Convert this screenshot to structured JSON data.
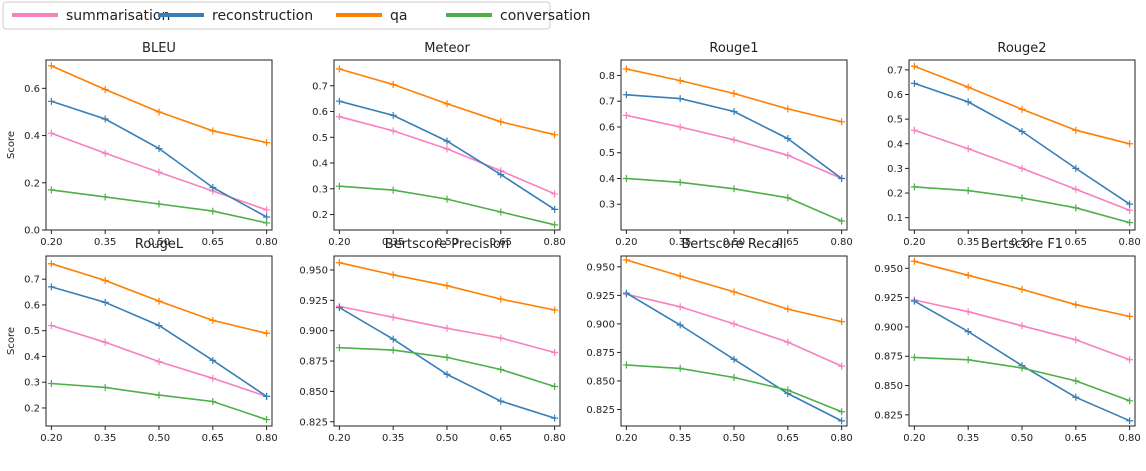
{
  "legend": {
    "placement": "top-left",
    "entries": [
      {
        "name": "summarisation",
        "color": "#f781bf"
      },
      {
        "name": "reconstruction",
        "color": "#377eb8"
      },
      {
        "name": "qa",
        "color": "#ff7f00"
      },
      {
        "name": "conversation",
        "color": "#4daf4a"
      }
    ]
  },
  "chart_data": [
    {
      "type": "line",
      "title": "BLEU",
      "ylabel": "Score",
      "x": [
        0.2,
        0.35,
        0.5,
        0.65,
        0.8
      ],
      "xticks": [
        "0.20",
        "0.35",
        "0.50",
        "0.65",
        "0.80"
      ],
      "ylim": [
        0.0,
        0.72
      ],
      "yticks": [
        0.0,
        0.2,
        0.4,
        0.6
      ],
      "yticklabels": [
        "0.0",
        "0.2",
        "0.4",
        "0.6"
      ],
      "series": [
        {
          "name": "summarisation",
          "values": [
            0.41,
            0.325,
            0.245,
            0.165,
            0.085
          ]
        },
        {
          "name": "reconstruction",
          "values": [
            0.545,
            0.47,
            0.345,
            0.18,
            0.055
          ]
        },
        {
          "name": "qa",
          "values": [
            0.695,
            0.595,
            0.5,
            0.42,
            0.37
          ]
        },
        {
          "name": "conversation",
          "values": [
            0.17,
            0.14,
            0.11,
            0.08,
            0.03
          ]
        }
      ]
    },
    {
      "type": "line",
      "title": "Meteor",
      "ylabel": "",
      "x": [
        0.2,
        0.35,
        0.5,
        0.65,
        0.8
      ],
      "xticks": [
        "0.20",
        "0.35",
        "0.50",
        "0.65",
        "0.80"
      ],
      "ylim": [
        0.14,
        0.8
      ],
      "yticks": [
        0.2,
        0.3,
        0.4,
        0.5,
        0.6,
        0.7
      ],
      "yticklabels": [
        "0.2",
        "0.3",
        "0.4",
        "0.5",
        "0.6",
        "0.7"
      ],
      "series": [
        {
          "name": "summarisation",
          "values": [
            0.58,
            0.525,
            0.455,
            0.37,
            0.28
          ]
        },
        {
          "name": "reconstruction",
          "values": [
            0.64,
            0.585,
            0.485,
            0.355,
            0.22
          ]
        },
        {
          "name": "qa",
          "values": [
            0.765,
            0.705,
            0.63,
            0.56,
            0.51
          ]
        },
        {
          "name": "conversation",
          "values": [
            0.31,
            0.295,
            0.26,
            0.21,
            0.16
          ]
        }
      ]
    },
    {
      "type": "line",
      "title": "Rouge1",
      "ylabel": "",
      "x": [
        0.2,
        0.35,
        0.5,
        0.65,
        0.8
      ],
      "xticks": [
        "0.20",
        "0.35",
        "0.50",
        "0.65",
        "0.80"
      ],
      "ylim": [
        0.2,
        0.86
      ],
      "yticks": [
        0.3,
        0.4,
        0.5,
        0.6,
        0.7,
        0.8
      ],
      "yticklabels": [
        "0.3",
        "0.4",
        "0.5",
        "0.6",
        "0.7",
        "0.8"
      ],
      "series": [
        {
          "name": "summarisation",
          "values": [
            0.645,
            0.6,
            0.55,
            0.49,
            0.4
          ]
        },
        {
          "name": "reconstruction",
          "values": [
            0.725,
            0.71,
            0.66,
            0.555,
            0.4
          ]
        },
        {
          "name": "qa",
          "values": [
            0.825,
            0.78,
            0.73,
            0.67,
            0.62
          ]
        },
        {
          "name": "conversation",
          "values": [
            0.4,
            0.385,
            0.36,
            0.325,
            0.235
          ]
        }
      ]
    },
    {
      "type": "line",
      "title": "Rouge2",
      "ylabel": "",
      "x": [
        0.2,
        0.35,
        0.5,
        0.65,
        0.8
      ],
      "xticks": [
        "0.20",
        "0.35",
        "0.50",
        "0.65",
        "0.80"
      ],
      "ylim": [
        0.05,
        0.74
      ],
      "yticks": [
        0.1,
        0.2,
        0.3,
        0.4,
        0.5,
        0.6,
        0.7
      ],
      "yticklabels": [
        "0.1",
        "0.2",
        "0.3",
        "0.4",
        "0.5",
        "0.6",
        "0.7"
      ],
      "series": [
        {
          "name": "summarisation",
          "values": [
            0.455,
            0.38,
            0.3,
            0.215,
            0.13
          ]
        },
        {
          "name": "reconstruction",
          "values": [
            0.645,
            0.57,
            0.45,
            0.3,
            0.155
          ]
        },
        {
          "name": "qa",
          "values": [
            0.715,
            0.63,
            0.54,
            0.455,
            0.4
          ]
        },
        {
          "name": "conversation",
          "values": [
            0.225,
            0.21,
            0.18,
            0.14,
            0.08
          ]
        }
      ]
    },
    {
      "type": "line",
      "title": "RougeL",
      "ylabel": "Score",
      "x": [
        0.2,
        0.35,
        0.5,
        0.65,
        0.8
      ],
      "xticks": [
        "0.20",
        "0.35",
        "0.50",
        "0.65",
        "0.80"
      ],
      "ylim": [
        0.13,
        0.79
      ],
      "yticks": [
        0.2,
        0.3,
        0.4,
        0.5,
        0.6,
        0.7
      ],
      "yticklabels": [
        "0.2",
        "0.3",
        "0.4",
        "0.5",
        "0.6",
        "0.7"
      ],
      "series": [
        {
          "name": "summarisation",
          "values": [
            0.52,
            0.455,
            0.38,
            0.315,
            0.245
          ]
        },
        {
          "name": "reconstruction",
          "values": [
            0.67,
            0.61,
            0.52,
            0.385,
            0.245
          ]
        },
        {
          "name": "qa",
          "values": [
            0.76,
            0.695,
            0.615,
            0.54,
            0.49
          ]
        },
        {
          "name": "conversation",
          "values": [
            0.295,
            0.28,
            0.25,
            0.225,
            0.155
          ]
        }
      ]
    },
    {
      "type": "line",
      "title": "Bertscore Precision",
      "ylabel": "",
      "x": [
        0.2,
        0.35,
        0.5,
        0.65,
        0.8
      ],
      "xticks": [
        "0.20",
        "0.35",
        "0.50",
        "0.65",
        "0.80"
      ],
      "ylim": [
        0.8215,
        0.9615
      ],
      "yticks": [
        0.825,
        0.85,
        0.875,
        0.9,
        0.925,
        0.95
      ],
      "yticklabels": [
        "0.825",
        "0.850",
        "0.875",
        "0.900",
        "0.925",
        "0.950"
      ],
      "series": [
        {
          "name": "summarisation",
          "values": [
            0.92,
            0.911,
            0.902,
            0.894,
            0.882
          ]
        },
        {
          "name": "reconstruction",
          "values": [
            0.919,
            0.893,
            0.864,
            0.842,
            0.828
          ]
        },
        {
          "name": "qa",
          "values": [
            0.956,
            0.946,
            0.937,
            0.926,
            0.917
          ]
        },
        {
          "name": "conversation",
          "values": [
            0.886,
            0.884,
            0.878,
            0.868,
            0.854
          ]
        }
      ]
    },
    {
      "type": "line",
      "title": "Bertscore Recall",
      "ylabel": "",
      "x": [
        0.2,
        0.35,
        0.5,
        0.65,
        0.8
      ],
      "xticks": [
        "0.20",
        "0.35",
        "0.50",
        "0.65",
        "0.80"
      ],
      "ylim": [
        0.8105,
        0.9595
      ],
      "yticks": [
        0.825,
        0.85,
        0.875,
        0.9,
        0.925,
        0.95
      ],
      "yticklabels": [
        "0.825",
        "0.850",
        "0.875",
        "0.900",
        "0.925",
        "0.950"
      ],
      "series": [
        {
          "name": "summarisation",
          "values": [
            0.926,
            0.915,
            0.9,
            0.884,
            0.863
          ]
        },
        {
          "name": "reconstruction",
          "values": [
            0.927,
            0.899,
            0.869,
            0.839,
            0.815
          ]
        },
        {
          "name": "qa",
          "values": [
            0.956,
            0.942,
            0.928,
            0.913,
            0.902
          ]
        },
        {
          "name": "conversation",
          "values": [
            0.864,
            0.861,
            0.853,
            0.842,
            0.823
          ]
        }
      ]
    },
    {
      "type": "line",
      "title": "Bertscore F1",
      "ylabel": "",
      "x": [
        0.2,
        0.35,
        0.5,
        0.65,
        0.8
      ],
      "xticks": [
        "0.20",
        "0.35",
        "0.50",
        "0.65",
        "0.80"
      ],
      "ylim": [
        0.8155,
        0.9605
      ],
      "yticks": [
        0.825,
        0.85,
        0.875,
        0.9,
        0.925,
        0.95
      ],
      "yticklabels": [
        "0.825",
        "0.850",
        "0.875",
        "0.900",
        "0.925",
        "0.950"
      ],
      "series": [
        {
          "name": "summarisation",
          "values": [
            0.923,
            0.913,
            0.901,
            0.889,
            0.872
          ]
        },
        {
          "name": "reconstruction",
          "values": [
            0.922,
            0.896,
            0.867,
            0.84,
            0.82
          ]
        },
        {
          "name": "qa",
          "values": [
            0.956,
            0.944,
            0.932,
            0.919,
            0.909
          ]
        },
        {
          "name": "conversation",
          "values": [
            0.874,
            0.872,
            0.865,
            0.854,
            0.837
          ]
        }
      ]
    }
  ]
}
